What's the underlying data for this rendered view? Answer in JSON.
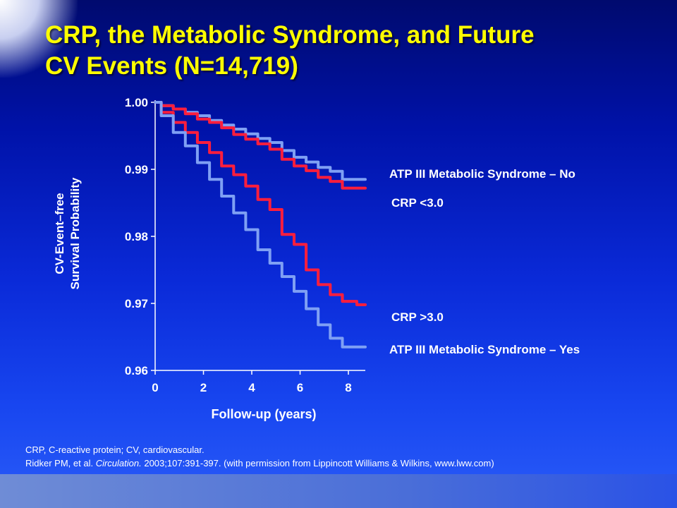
{
  "slide": {
    "title_line1": "CRP, the Metabolic Syndrome, and Future",
    "title_line2": "CV Events (N=14,719)",
    "footnote_line1": "CRP, C-reactive protein; CV, cardiovascular.",
    "footnote_line2_prefix": "Ridker PM, et al. ",
    "footnote_journal": "Circulation.",
    "footnote_line2_suffix": " 2003;107:391-397. (with permission from Lippincott Williams & Wilkins, www.lww.com)"
  },
  "colors": {
    "title": "#ffff00",
    "metabolic_syndrome": "#7fa0f4",
    "crp": "#ff1e3c",
    "axes": "#ffffff"
  },
  "chart_data": {
    "type": "line",
    "title": "",
    "xlabel": "Follow-up (years)",
    "ylabel_lines": [
      "CV-Event–free",
      "Survival Probability"
    ],
    "xlim": [
      0,
      8.7
    ],
    "ylim": [
      0.96,
      1.0
    ],
    "x_ticks": [
      0,
      2,
      4,
      6,
      8
    ],
    "x_tick_labels": [
      "0",
      "2",
      "4",
      "6",
      "8"
    ],
    "y_ticks": [
      1.0,
      0.99,
      0.98,
      0.97,
      0.96
    ],
    "y_tick_labels": [
      "1.00",
      "0.99",
      "0.98",
      "0.97",
      "0.96"
    ],
    "grid": false,
    "series": [
      {
        "name": "ATP III Metabolic Syndrome – No",
        "color_key": "metabolic_syndrome",
        "x": [
          0,
          0.5,
          1,
          1.5,
          2,
          2.5,
          3,
          3.5,
          4,
          4.5,
          5,
          5.5,
          6,
          6.5,
          7,
          7.5,
          8,
          8.7
        ],
        "y": [
          1.0,
          0.9995,
          0.999,
          0.9985,
          0.998,
          0.9973,
          0.9966,
          0.996,
          0.9953,
          0.9946,
          0.994,
          0.9928,
          0.9918,
          0.9911,
          0.9903,
          0.9897,
          0.9885,
          0.9885
        ]
      },
      {
        "name": "CRP <3.0",
        "color_key": "crp",
        "x": [
          0,
          0.5,
          1,
          1.5,
          2,
          2.5,
          3,
          3.5,
          4,
          4.5,
          5,
          5.5,
          6,
          6.5,
          7,
          7.5,
          8,
          8.7
        ],
        "y": [
          1.0,
          0.9995,
          0.999,
          0.9983,
          0.9975,
          0.997,
          0.9962,
          0.9952,
          0.9945,
          0.9938,
          0.993,
          0.9915,
          0.9905,
          0.9898,
          0.9888,
          0.9882,
          0.9872,
          0.9872
        ]
      },
      {
        "name": "CRP >3.0",
        "color_key": "crp",
        "x": [
          0,
          0.5,
          1,
          1.5,
          2,
          2.5,
          3,
          3.5,
          4,
          4.5,
          5,
          5.5,
          6,
          6.5,
          7,
          7.5,
          8,
          8.7
        ],
        "y": [
          1.0,
          0.9985,
          0.997,
          0.9955,
          0.994,
          0.9925,
          0.9905,
          0.9892,
          0.9875,
          0.9855,
          0.984,
          0.9803,
          0.9788,
          0.975,
          0.9728,
          0.9713,
          0.9703,
          0.9698
        ]
      },
      {
        "name": "ATP III Metabolic Syndrome – Yes",
        "color_key": "metabolic_syndrome",
        "x": [
          0,
          0.5,
          1,
          1.5,
          2,
          2.5,
          3,
          3.5,
          4,
          4.5,
          5,
          5.5,
          6,
          6.5,
          7,
          7.5,
          8,
          8.7
        ],
        "y": [
          1.0,
          0.998,
          0.9955,
          0.9935,
          0.991,
          0.9885,
          0.986,
          0.9835,
          0.981,
          0.978,
          0.976,
          0.974,
          0.9718,
          0.9692,
          0.9668,
          0.9648,
          0.9635,
          0.9635
        ]
      }
    ]
  }
}
